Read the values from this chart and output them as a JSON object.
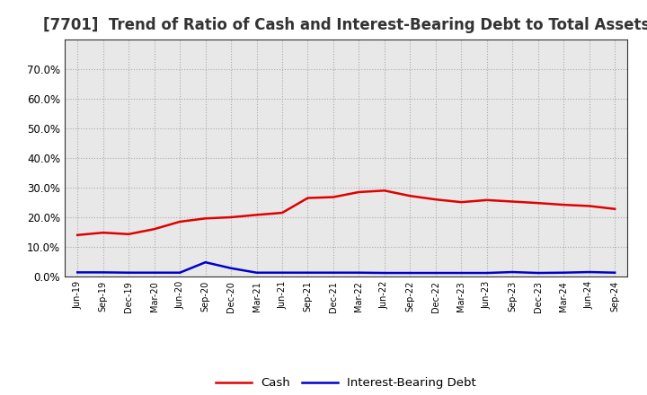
{
  "title": "[7701]  Trend of Ratio of Cash and Interest-Bearing Debt to Total Assets",
  "x_labels": [
    "Jun-19",
    "Sep-19",
    "Dec-19",
    "Mar-20",
    "Jun-20",
    "Sep-20",
    "Dec-20",
    "Mar-21",
    "Jun-21",
    "Sep-21",
    "Dec-21",
    "Mar-22",
    "Jun-22",
    "Sep-22",
    "Dec-22",
    "Mar-23",
    "Jun-23",
    "Sep-23",
    "Dec-23",
    "Mar-24",
    "Jun-24",
    "Sep-24"
  ],
  "cash": [
    0.14,
    0.148,
    0.143,
    0.16,
    0.185,
    0.196,
    0.2,
    0.208,
    0.215,
    0.265,
    0.268,
    0.285,
    0.29,
    0.272,
    0.26,
    0.251,
    0.258,
    0.253,
    0.248,
    0.242,
    0.238,
    0.228
  ],
  "debt": [
    0.014,
    0.014,
    0.013,
    0.013,
    0.013,
    0.048,
    0.028,
    0.013,
    0.013,
    0.013,
    0.013,
    0.013,
    0.012,
    0.012,
    0.012,
    0.012,
    0.012,
    0.015,
    0.012,
    0.013,
    0.015,
    0.013
  ],
  "cash_color": "#e00000",
  "debt_color": "#0000cc",
  "ylim": [
    0.0,
    0.8
  ],
  "yticks": [
    0.0,
    0.1,
    0.2,
    0.3,
    0.4,
    0.5,
    0.6,
    0.7
  ],
  "background_color": "#ffffff",
  "plot_bg_color": "#e8e8e8",
  "grid_color": "#aaaaaa",
  "title_fontsize": 12,
  "legend_labels": [
    "Cash",
    "Interest-Bearing Debt"
  ]
}
